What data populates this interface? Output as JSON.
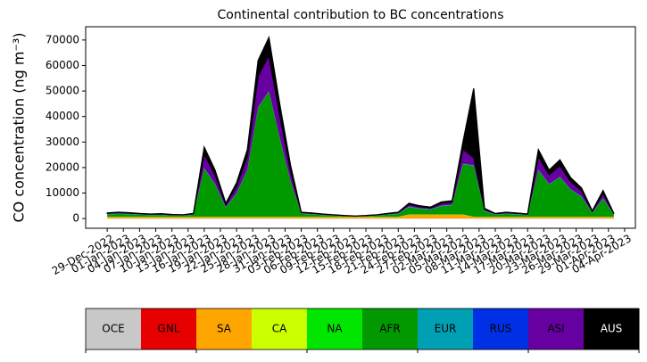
{
  "chart_data": {
    "type": "stacked_area",
    "title": "Continental contribution to BC concentrations",
    "y_label": "CO concentration (ng m⁻³)",
    "x": [
      "2022-12-29",
      "2022-12-31",
      "2023-01-02",
      "2023-01-04",
      "2023-01-06",
      "2023-01-08",
      "2023-01-10",
      "2023-01-12",
      "2023-01-14",
      "2023-01-16",
      "2023-01-18",
      "2023-01-20",
      "2023-01-22",
      "2023-01-24",
      "2023-01-26",
      "2023-01-28",
      "2023-01-30",
      "2023-02-01",
      "2023-02-03",
      "2023-02-05",
      "2023-02-07",
      "2023-02-09",
      "2023-02-11",
      "2023-02-13",
      "2023-02-15",
      "2023-02-17",
      "2023-02-19",
      "2023-02-21",
      "2023-02-23",
      "2023-02-25",
      "2023-02-27",
      "2023-03-01",
      "2023-03-03",
      "2023-03-05",
      "2023-03-07",
      "2023-03-09",
      "2023-03-11",
      "2023-03-13",
      "2023-03-15",
      "2023-03-17",
      "2023-03-19",
      "2023-03-21",
      "2023-03-23",
      "2023-03-25",
      "2023-03-27",
      "2023-03-29",
      "2023-03-31",
      "2023-04-02"
    ],
    "series": [
      {
        "name": "OCE",
        "color": "#c8c8c8",
        "values": [
          10,
          10,
          10,
          10,
          10,
          10,
          10,
          10,
          10,
          10,
          10,
          10,
          10,
          10,
          10,
          10,
          10,
          10,
          10,
          10,
          10,
          10,
          10,
          10,
          10,
          10,
          10,
          10,
          10,
          10,
          10,
          10,
          10,
          10,
          10,
          10,
          10,
          10,
          10,
          10,
          10,
          10,
          10,
          10,
          10,
          10,
          10,
          10
        ]
      },
      {
        "name": "GNL",
        "color": "#e60000",
        "values": [
          20,
          20,
          20,
          20,
          20,
          20,
          20,
          20,
          20,
          20,
          20,
          20,
          20,
          20,
          20,
          20,
          20,
          20,
          20,
          20,
          20,
          20,
          20,
          20,
          20,
          20,
          20,
          20,
          20,
          20,
          20,
          20,
          20,
          20,
          20,
          20,
          20,
          20,
          20,
          20,
          20,
          20,
          20,
          20,
          20,
          20,
          20,
          20
        ]
      },
      {
        "name": "SA",
        "color": "#ffa500",
        "values": [
          600,
          600,
          600,
          600,
          600,
          600,
          600,
          600,
          600,
          600,
          600,
          600,
          600,
          600,
          600,
          600,
          600,
          600,
          600,
          600,
          600,
          600,
          600,
          600,
          600,
          600,
          600,
          600,
          1500,
          1500,
          1500,
          1500,
          1500,
          1500,
          600,
          600,
          600,
          600,
          600,
          600,
          600,
          600,
          600,
          600,
          600,
          600,
          600,
          600
        ]
      },
      {
        "name": "CA",
        "color": "#ccff00",
        "values": [
          30,
          30,
          30,
          30,
          30,
          30,
          30,
          30,
          30,
          30,
          30,
          30,
          30,
          30,
          30,
          30,
          30,
          30,
          30,
          30,
          30,
          30,
          30,
          30,
          30,
          30,
          30,
          30,
          30,
          30,
          30,
          30,
          30,
          30,
          30,
          30,
          30,
          30,
          30,
          30,
          30,
          30,
          30,
          30,
          30,
          30,
          30,
          30
        ]
      },
      {
        "name": "NA",
        "color": "#00e600",
        "values": [
          60,
          60,
          60,
          60,
          60,
          60,
          60,
          60,
          60,
          60,
          60,
          60,
          60,
          60,
          60,
          60,
          60,
          60,
          60,
          60,
          60,
          60,
          60,
          60,
          60,
          60,
          60,
          60,
          60,
          60,
          60,
          60,
          60,
          60,
          60,
          60,
          60,
          60,
          60,
          60,
          60,
          60,
          60,
          60,
          60,
          60,
          60,
          60
        ]
      },
      {
        "name": "AFR",
        "color": "#009900",
        "values": [
          900,
          1120,
          980,
          770,
          630,
          700,
          490,
          420,
          770,
          18970,
          12670,
          3570,
          9170,
          18270,
          42770,
          49070,
          30870,
          14070,
          1120,
          910,
          630,
          420,
          210,
          70,
          210,
          420,
          770,
          1120,
          2940,
          2240,
          1890,
          3290,
          3640,
          19740,
          20000,
          2170,
          770,
          1120,
          910,
          630,
          18270,
          12670,
          15470,
          10570,
          7770,
          1470,
          7070,
          770
        ]
      },
      {
        "name": "EUR",
        "color": "#00a0b4",
        "values": [
          80,
          80,
          80,
          80,
          80,
          80,
          80,
          80,
          80,
          80,
          80,
          80,
          80,
          80,
          80,
          80,
          80,
          80,
          80,
          80,
          80,
          80,
          80,
          80,
          80,
          80,
          80,
          80,
          80,
          80,
          80,
          80,
          80,
          80,
          80,
          80,
          80,
          80,
          80,
          80,
          80,
          80,
          80,
          80,
          80,
          80,
          80,
          80
        ]
      },
      {
        "name": "RUS",
        "color": "#0030e6",
        "values": [
          100,
          100,
          100,
          100,
          100,
          100,
          100,
          100,
          100,
          100,
          100,
          100,
          100,
          100,
          100,
          100,
          100,
          100,
          100,
          100,
          100,
          100,
          100,
          100,
          100,
          100,
          100,
          100,
          100,
          100,
          100,
          100,
          100,
          100,
          100,
          100,
          100,
          100,
          100,
          100,
          100,
          100,
          100,
          100,
          100,
          100,
          100,
          100
        ]
      },
      {
        "name": "ASI",
        "color": "#6600a0",
        "values": [
          260,
          320,
          280,
          220,
          180,
          200,
          140,
          120,
          220,
          5420,
          3620,
          1020,
          2620,
          5220,
          12220,
          14020,
          8820,
          4020,
          320,
          260,
          180,
          120,
          60,
          20,
          60,
          120,
          220,
          320,
          840,
          640,
          540,
          940,
          1040,
          5640,
          3000,
          620,
          220,
          320,
          260,
          180,
          5220,
          3620,
          4420,
          3020,
          2220,
          420,
          2020,
          220
        ]
      },
      {
        "name": "AUS",
        "color": "#000000",
        "values": [
          140,
          160,
          140,
          110,
          90,
          100,
          70,
          60,
          110,
          2710,
          1810,
          510,
          1310,
          2610,
          6110,
          7010,
          4410,
          2010,
          160,
          130,
          90,
          60,
          30,
          10,
          30,
          60,
          110,
          160,
          420,
          320,
          270,
          470,
          520,
          2820,
          27100,
          310,
          110,
          160,
          130,
          90,
          2610,
          1810,
          2210,
          1510,
          1110,
          210,
          1010,
          110
        ]
      }
    ],
    "xlim": [
      "2022-12-25",
      "2023-04-06"
    ],
    "xticks": [
      {
        "value": "2022-12-29",
        "label": "29-Dec-2022"
      },
      {
        "value": "2023-01-01",
        "label": "01-Jan-2023"
      },
      {
        "value": "2023-01-04",
        "label": "04-Jan-2023"
      },
      {
        "value": "2023-01-07",
        "label": "07-Jan-2023"
      },
      {
        "value": "2023-01-10",
        "label": "10-Jan-2023"
      },
      {
        "value": "2023-01-13",
        "label": "13-Jan-2023"
      },
      {
        "value": "2023-01-16",
        "label": "16-Jan-2023"
      },
      {
        "value": "2023-01-19",
        "label": "19-Jan-2023"
      },
      {
        "value": "2023-01-22",
        "label": "22-Jan-2023"
      },
      {
        "value": "2023-01-25",
        "label": "25-Jan-2023"
      },
      {
        "value": "2023-01-28",
        "label": "28-Jan-2023"
      },
      {
        "value": "2023-01-31",
        "label": "31-Jan-2023"
      },
      {
        "value": "2023-02-03",
        "label": "03-Feb-2023"
      },
      {
        "value": "2023-02-06",
        "label": "06-Feb-2023"
      },
      {
        "value": "2023-02-09",
        "label": "09-Feb-2023"
      },
      {
        "value": "2023-02-12",
        "label": "12-Feb-2023"
      },
      {
        "value": "2023-02-15",
        "label": "15-Feb-2023"
      },
      {
        "value": "2023-02-18",
        "label": "18-Feb-2023"
      },
      {
        "value": "2023-02-21",
        "label": "21-Feb-2023"
      },
      {
        "value": "2023-02-24",
        "label": "24-Feb-2023"
      },
      {
        "value": "2023-02-27",
        "label": "27-Feb-2023"
      },
      {
        "value": "2023-03-02",
        "label": "02-Mar-2023"
      },
      {
        "value": "2023-03-05",
        "label": "05-Mar-2023"
      },
      {
        "value": "2023-03-08",
        "label": "08-Mar-2023"
      },
      {
        "value": "2023-03-11",
        "label": "11-Mar-2023"
      },
      {
        "value": "2023-03-14",
        "label": "14-Mar-2023"
      },
      {
        "value": "2023-03-17",
        "label": "17-Mar-2023"
      },
      {
        "value": "2023-03-20",
        "label": "20-Mar-2023"
      },
      {
        "value": "2023-03-23",
        "label": "23-Mar-2023"
      },
      {
        "value": "2023-03-26",
        "label": "26-Mar-2023"
      },
      {
        "value": "2023-03-29",
        "label": "29-Mar-2023"
      },
      {
        "value": "2023-04-01",
        "label": "01-Apr-2023"
      },
      {
        "value": "2023-04-04",
        "label": "04-Apr-2023"
      }
    ],
    "ylim": [
      -3800,
      75200
    ],
    "yticks": [
      0,
      10000,
      20000,
      30000,
      40000,
      50000,
      60000,
      70000
    ],
    "grid": false
  }
}
